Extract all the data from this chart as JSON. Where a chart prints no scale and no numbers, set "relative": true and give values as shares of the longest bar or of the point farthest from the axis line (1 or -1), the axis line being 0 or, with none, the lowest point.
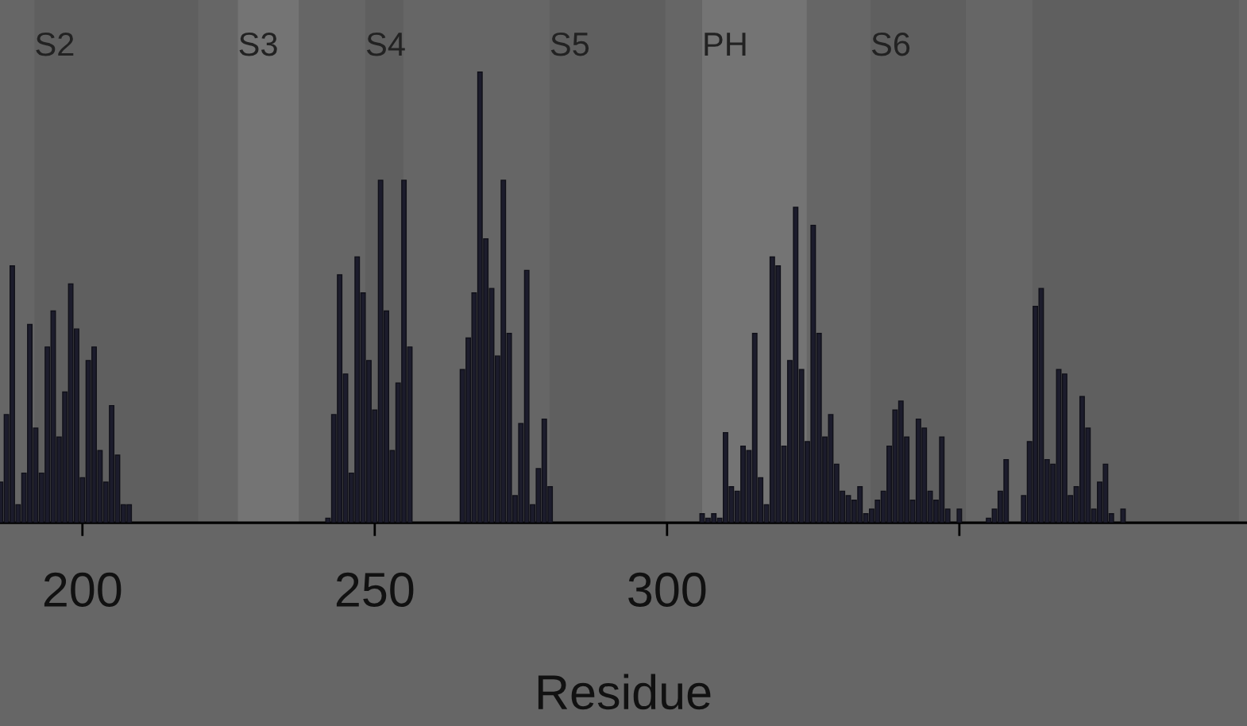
{
  "chart_data": {
    "type": "bar",
    "relative": true,
    "xlabel": "Residue",
    "xlim": [
      185.9,
      399.2
    ],
    "xticks": [
      200,
      250,
      300,
      {
        "value": 350,
        "label": null
      }
    ],
    "x": [
      186,
      187,
      188,
      189,
      190,
      191,
      192,
      193,
      194,
      195,
      196,
      197,
      198,
      199,
      200,
      201,
      202,
      203,
      204,
      205,
      206,
      207,
      208,
      242,
      243,
      244,
      245,
      246,
      247,
      248,
      249,
      250,
      251,
      252,
      253,
      254,
      255,
      256,
      265,
      266,
      267,
      268,
      269,
      270,
      271,
      272,
      273,
      274,
      275,
      276,
      277,
      278,
      279,
      280,
      306,
      307,
      308,
      309,
      310,
      311,
      312,
      313,
      314,
      315,
      316,
      317,
      318,
      319,
      320,
      321,
      322,
      323,
      324,
      325,
      326,
      327,
      328,
      329,
      330,
      331,
      332,
      333,
      334,
      335,
      336,
      337,
      338,
      339,
      340,
      341,
      342,
      343,
      344,
      345,
      346,
      347,
      348,
      350,
      355,
      356,
      357,
      358,
      361,
      362,
      363,
      364,
      365,
      366,
      367,
      368,
      369,
      370,
      371,
      372,
      373,
      374,
      375,
      376,
      378
    ],
    "values": [
      0.09,
      0.24,
      0.57,
      0.04,
      0.11,
      0.44,
      0.21,
      0.11,
      0.39,
      0.47,
      0.19,
      0.29,
      0.53,
      0.43,
      0.1,
      0.36,
      0.39,
      0.16,
      0.09,
      0.26,
      0.15,
      0.04,
      0.04,
      0.01,
      0.24,
      0.55,
      0.33,
      0.11,
      0.59,
      0.51,
      0.36,
      0.25,
      0.76,
      0.47,
      0.16,
      0.31,
      0.76,
      0.39,
      0.34,
      0.41,
      0.51,
      1.0,
      0.63,
      0.52,
      0.37,
      0.76,
      0.42,
      0.06,
      0.22,
      0.56,
      0.04,
      0.12,
      0.23,
      0.08,
      0.02,
      0.01,
      0.02,
      0.01,
      0.2,
      0.08,
      0.07,
      0.17,
      0.16,
      0.42,
      0.1,
      0.04,
      0.59,
      0.57,
      0.17,
      0.36,
      0.7,
      0.34,
      0.18,
      0.66,
      0.42,
      0.19,
      0.24,
      0.13,
      0.07,
      0.06,
      0.05,
      0.08,
      0.02,
      0.03,
      0.05,
      0.07,
      0.17,
      0.25,
      0.27,
      0.19,
      0.05,
      0.23,
      0.21,
      0.07,
      0.05,
      0.19,
      0.03,
      0.03,
      0.01,
      0.03,
      0.07,
      0.14,
      0.06,
      0.18,
      0.48,
      0.52,
      0.14,
      0.13,
      0.34,
      0.33,
      0.06,
      0.08,
      0.28,
      0.21,
      0.03,
      0.09,
      0.13,
      0.02,
      0.03
    ],
    "color": "#1c1c2c",
    "grid": false,
    "bands": [
      {
        "axis": "x",
        "from": 191.8,
        "to": 219.8,
        "label": "S2",
        "color": "#5f5f5f"
      },
      {
        "axis": "x",
        "from": 226.6,
        "to": 237.0,
        "label": "S3",
        "color": "#747474"
      },
      {
        "axis": "x",
        "from": 248.4,
        "to": 254.9,
        "label": "S4",
        "color": "#5f5f5f"
      },
      {
        "axis": "x",
        "from": 279.9,
        "to": 299.7,
        "label": "S5",
        "color": "#5f5f5f"
      },
      {
        "axis": "x",
        "from": 306.0,
        "to": 323.9,
        "label": "PH",
        "color": "#747474"
      },
      {
        "axis": "x",
        "from": 334.8,
        "to": 351.1,
        "label": "S6",
        "color": "#5f5f5f"
      },
      {
        "axis": "x",
        "from": 362.5,
        "to": 397.8,
        "color": "#5f5f5f"
      }
    ]
  }
}
